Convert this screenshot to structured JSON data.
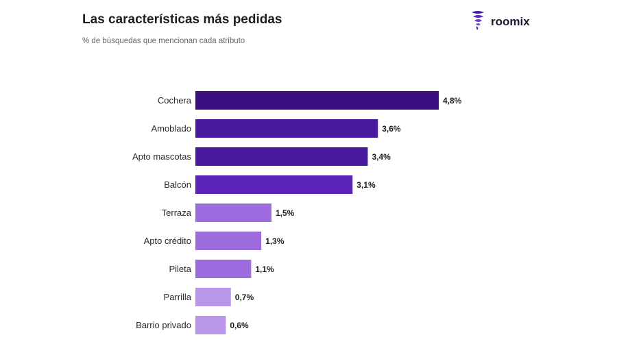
{
  "header": {
    "title": "Las características más pedidas",
    "subtitle": "% de búsquedas que mencionan cada atributo"
  },
  "brand": {
    "name": "roomix",
    "logo_icon": "tornado-icon",
    "logo_color": "#4b1fa3"
  },
  "chart_data": {
    "type": "bar",
    "orientation": "horizontal",
    "title": "Las características más pedidas",
    "subtitle": "% de búsquedas que mencionan cada atributo",
    "categories": [
      "Cochera",
      "Amoblado",
      "Apto mascotas",
      "Balcón",
      "Terraza",
      "Apto crédito",
      "Pileta",
      "Parrilla",
      "Barrio privado"
    ],
    "values": [
      4.8,
      3.6,
      3.4,
      3.1,
      1.5,
      1.3,
      1.1,
      0.7,
      0.6
    ],
    "value_labels": [
      "4,8%",
      "3,6%",
      "3,4%",
      "3,1%",
      "1,5%",
      "1,3%",
      "1,1%",
      "0,7%",
      "0,6%"
    ],
    "colors": [
      "#3a0f80",
      "#4a1a9e",
      "#4a1a9e",
      "#5a22b8",
      "#9d6de0",
      "#9d6de0",
      "#9d6de0",
      "#b996ea",
      "#b996ea"
    ],
    "unit": "%",
    "xlim": [
      0,
      4.8
    ],
    "grid": false,
    "legend": "none"
  }
}
